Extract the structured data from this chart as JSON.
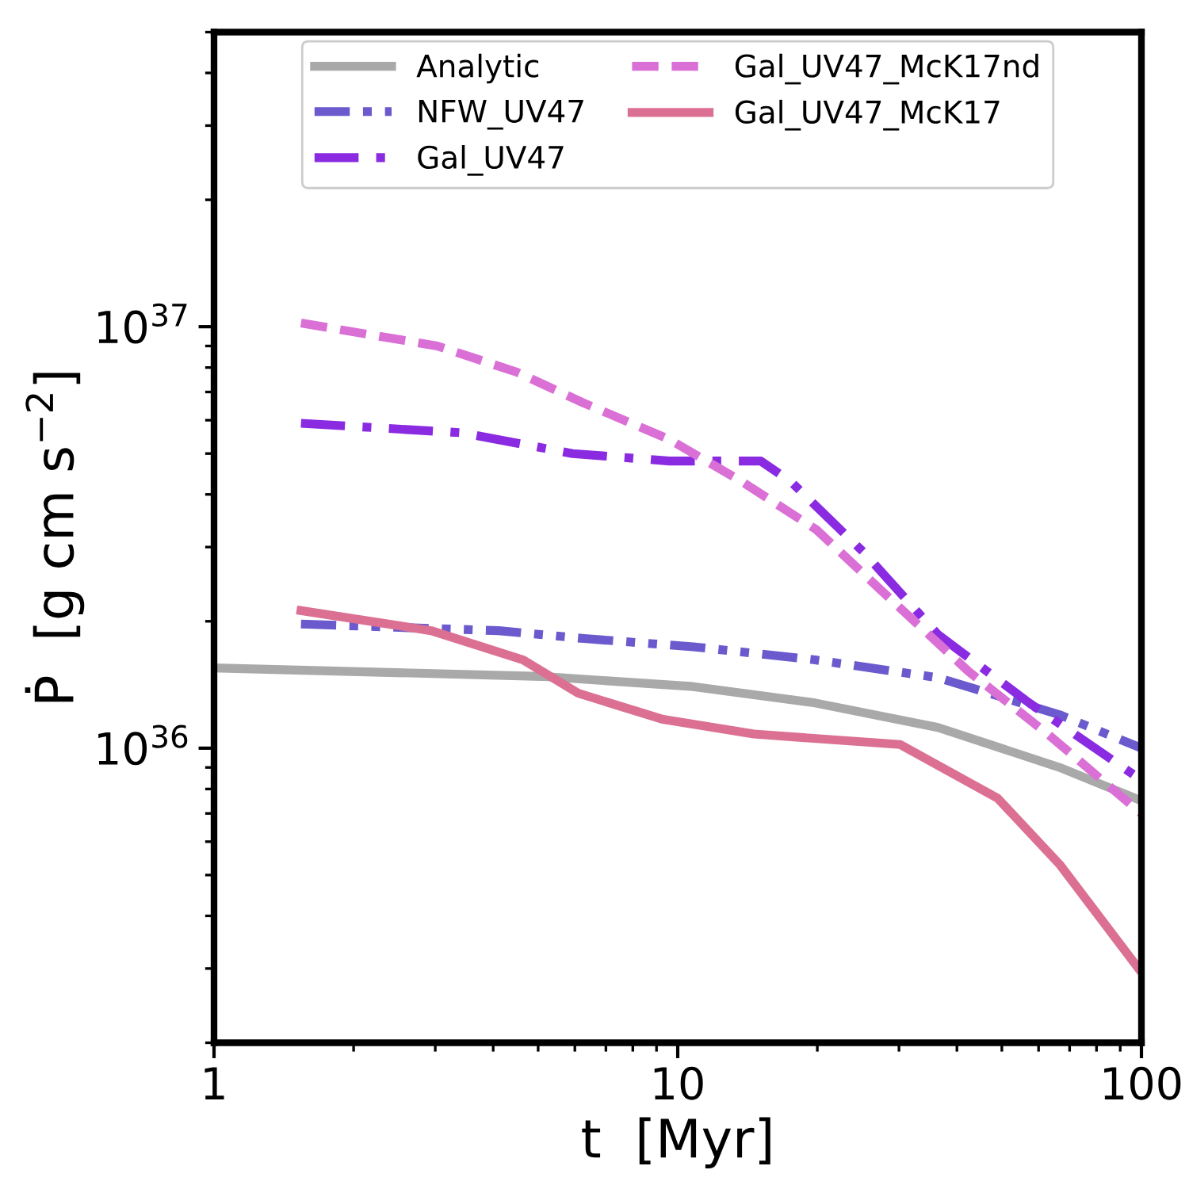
{
  "chart_data": {
    "type": "line",
    "xlabel": "t  [Myr]",
    "ylabel": "Ṗ  [g cm s$^{−2}$]",
    "log": "xy",
    "xlim": [
      1,
      100
    ],
    "ylim": [
      2e+35,
      5e+37
    ],
    "xticks": [
      1,
      10,
      100
    ],
    "yticks": [
      {
        "value": 1e+36,
        "label": "10$^{36}$"
      },
      {
        "value": 1e+37,
        "label": "10$^{37}$"
      }
    ],
    "legend": "top",
    "grid": false,
    "series": [
      {
        "name": "Analytic",
        "color": "#a9a9a9",
        "line_style": "solid",
        "x": [
          1,
          5.08,
          10.8,
          19.8,
          36.4,
          66.6,
          100
        ],
        "values": [
          1.55e+36,
          1.48e+36,
          1.4e+36,
          1.28e+36,
          1.12e+36,
          9e+35,
          7.5e+35
        ]
      },
      {
        "name": "NFW_UV47",
        "color": "#6a5acd",
        "line_style": "dashdotdot",
        "x": [
          1.54,
          4.11,
          6.28,
          10.8,
          19.8,
          36.4,
          66.6,
          100
        ],
        "values": [
          1.97e+36,
          1.9e+36,
          1.82e+36,
          1.74e+36,
          1.62e+36,
          1.47e+36,
          1.2e+36,
          1e+36
        ]
      },
      {
        "name": "Gal_UV47",
        "color": "#8a2be2",
        "line_style": "dashdot",
        "x": [
          1.54,
          3.43,
          5.93,
          9.6,
          15.1,
          17.5,
          25.3,
          36.4,
          57.3,
          90,
          100
        ],
        "values": [
          5.9e+36,
          5.6e+36,
          5e+36,
          4.8e+36,
          4.8e+36,
          4.3e+36,
          2.9e+36,
          1.86e+36,
          1.28e+36,
          9.1e+35,
          8.4e+35
        ]
      },
      {
        "name": "Gal_UV47_McK17nd",
        "color": "#da70d6",
        "line_style": "dashed",
        "x": [
          1.54,
          3.03,
          4.5,
          6.25,
          9.6,
          13.7,
          19.9,
          29.5,
          42.4,
          62.8,
          100
        ],
        "values": [
          1.02e+37,
          9e+36,
          7.8e+36,
          6.6e+36,
          5.4e+36,
          4.3e+36,
          3.3e+36,
          2.2e+36,
          1.52e+36,
          1.08e+36,
          7e+35
        ]
      },
      {
        "name": "Gal_UV47_McK17",
        "color": "#db7093",
        "line_style": "solid",
        "x": [
          1.54,
          2.94,
          4.64,
          6.1,
          9.3,
          14.6,
          30.2,
          49,
          66.6,
          98.6
        ],
        "values": [
          2.12e+36,
          1.9e+36,
          1.62e+36,
          1.35e+36,
          1.17e+36,
          1.08e+36,
          1.02e+36,
          7.6e+35,
          5.3e+35,
          3e+35
        ]
      }
    ]
  }
}
